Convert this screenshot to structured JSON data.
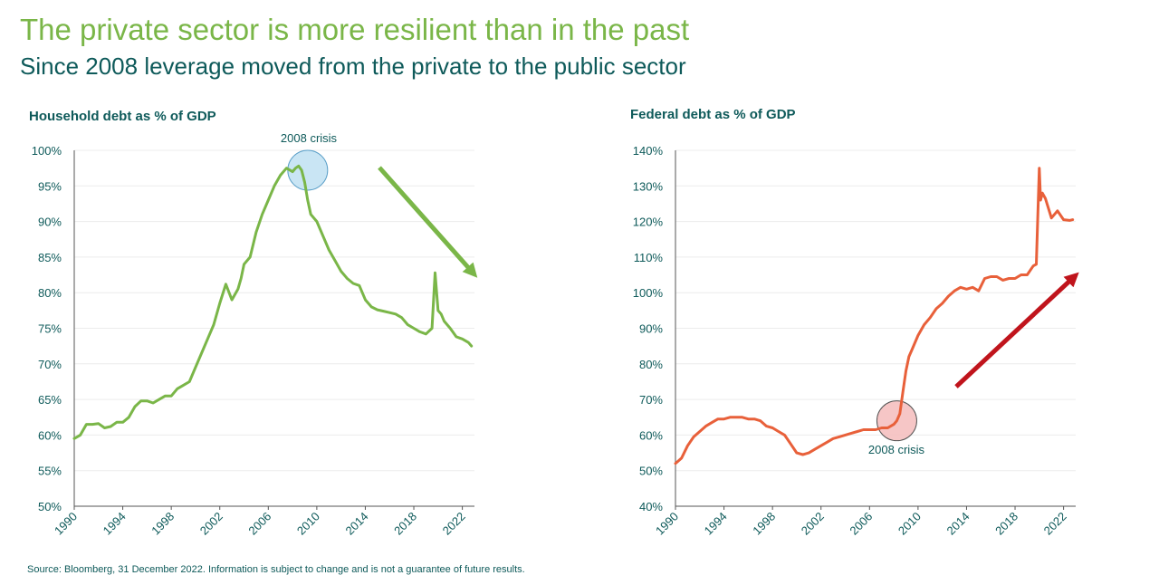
{
  "header": {
    "title": "The private sector is more resilient than in the past",
    "subtitle": "Since 2008 leverage moved from the private to the public sector"
  },
  "source": "Source: Bloomberg, 31 December 2022. Information is subject to change and is not a guarantee of future results.",
  "colors": {
    "title": "#7ab648",
    "subtitle": "#0e5a5a",
    "household_line": "#7ab648",
    "federal_line": "#e8603a",
    "green_arrow": "#7ab648",
    "red_arrow": "#c0141c",
    "blue_circle": "#bfe0f2",
    "pink_circle": "#f4bcbc"
  },
  "chart_data": [
    {
      "type": "line",
      "title": "Household debt as % of GDP",
      "ylim": [
        50,
        100
      ],
      "yticks": [
        "50%",
        "55%",
        "60%",
        "65%",
        "70%",
        "75%",
        "80%",
        "85%",
        "90%",
        "95%",
        "100%"
      ],
      "xlim": [
        1990,
        2023
      ],
      "xticks": [
        "1990",
        "1994",
        "1998",
        "2002",
        "2006",
        "2010",
        "2014",
        "2018",
        "2022"
      ],
      "annotation": "2008 crisis",
      "trend_arrow": "down",
      "series": [
        {
          "x": [
            1990,
            1990.5,
            1991,
            1991.5,
            1992,
            1992.5,
            1993,
            1993.5,
            1994,
            1994.5,
            1995,
            1995.5,
            1996,
            1996.5,
            1997,
            1997.5,
            1998,
            1998.5,
            1999,
            1999.5,
            2000,
            2000.5,
            2001,
            2001.5,
            2002,
            2002.5,
            2003,
            2003.5,
            2003.75,
            2004,
            2004.5,
            2005,
            2005.5,
            2006,
            2006.5,
            2007,
            2007.5,
            2008,
            2008.25,
            2008.5,
            2008.75,
            2009,
            2009.25,
            2009.5,
            2010,
            2010.5,
            2011,
            2011.5,
            2012,
            2012.5,
            2013,
            2013.5,
            2014,
            2014.5,
            2015,
            2015.5,
            2016,
            2016.5,
            2017,
            2017.5,
            2018,
            2018.5,
            2019,
            2019.5,
            2019.75,
            2020,
            2020.25,
            2020.5,
            2021,
            2021.5,
            2022,
            2022.5,
            2022.75
          ],
          "values": [
            59.5,
            60,
            61.5,
            61.5,
            61.6,
            61,
            61.2,
            61.8,
            61.8,
            62.5,
            64,
            64.8,
            64.8,
            64.5,
            65,
            65.5,
            65.5,
            66.5,
            67,
            67.5,
            69.5,
            71.5,
            73.5,
            75.5,
            78.5,
            81.2,
            79,
            80.5,
            82,
            84,
            85,
            88.5,
            91,
            93,
            95,
            96.5,
            97.5,
            97,
            97.5,
            97.8,
            97.2,
            95.5,
            93,
            91,
            90,
            88,
            86,
            84.5,
            83,
            82,
            81.3,
            81,
            79,
            78,
            77.6,
            77.4,
            77.2,
            77,
            76.5,
            75.5,
            75,
            74.5,
            74.2,
            75,
            82.8,
            77.5,
            77,
            76,
            75,
            73.8,
            73.5,
            73,
            72.5
          ]
        }
      ]
    },
    {
      "type": "line",
      "title": "Federal debt as % of GDP",
      "ylim": [
        40,
        140
      ],
      "yticks": [
        "40%",
        "50%",
        "60%",
        "70%",
        "80%",
        "90%",
        "100%",
        "110%",
        "120%",
        "130%",
        "140%"
      ],
      "xlim": [
        1990,
        2023
      ],
      "xticks": [
        "1990",
        "1994",
        "1998",
        "2002",
        "2006",
        "2010",
        "2014",
        "2018",
        "2022"
      ],
      "annotation": "2008 crisis",
      "trend_arrow": "up",
      "series": [
        {
          "x": [
            1990,
            1990.5,
            1991,
            1991.5,
            1992,
            1992.5,
            1993,
            1993.5,
            1994,
            1994.5,
            1995,
            1995.5,
            1996,
            1996.5,
            1997,
            1997.5,
            1998,
            1998.5,
            1999,
            1999.5,
            2000,
            2000.5,
            2001,
            2001.5,
            2002,
            2002.5,
            2003,
            2003.5,
            2004,
            2004.5,
            2005,
            2005.5,
            2006,
            2006.5,
            2007,
            2007.5,
            2008,
            2008.25,
            2008.5,
            2008.75,
            2009,
            2009.25,
            2009.5,
            2010,
            2010.5,
            2011,
            2011.5,
            2012,
            2012.5,
            2013,
            2013.5,
            2014,
            2014.5,
            2015,
            2015.5,
            2016,
            2016.5,
            2017,
            2017.5,
            2018,
            2018.5,
            2019,
            2019.5,
            2019.75,
            2020,
            2020.1,
            2020.25,
            2020.5,
            2021,
            2021.5,
            2022,
            2022.5,
            2022.75
          ],
          "values": [
            52,
            53.5,
            57,
            59.5,
            61,
            62.5,
            63.5,
            64.5,
            64.5,
            65,
            65,
            65,
            64.5,
            64.5,
            64,
            62.5,
            62,
            61,
            60,
            57.5,
            55,
            54.5,
            55,
            56,
            57,
            58,
            59,
            59.5,
            60,
            60.5,
            61,
            61.5,
            61.5,
            61.5,
            62,
            62,
            63,
            64,
            66,
            72,
            78,
            82,
            84,
            88,
            91,
            93,
            95.5,
            97,
            99,
            100.5,
            101.5,
            101,
            101.5,
            100.5,
            104,
            104.5,
            104.5,
            103.5,
            104,
            104,
            105,
            105,
            107.5,
            108,
            135,
            126,
            128,
            126.5,
            121,
            123,
            120.5,
            120.3,
            120.5
          ]
        }
      ]
    }
  ]
}
